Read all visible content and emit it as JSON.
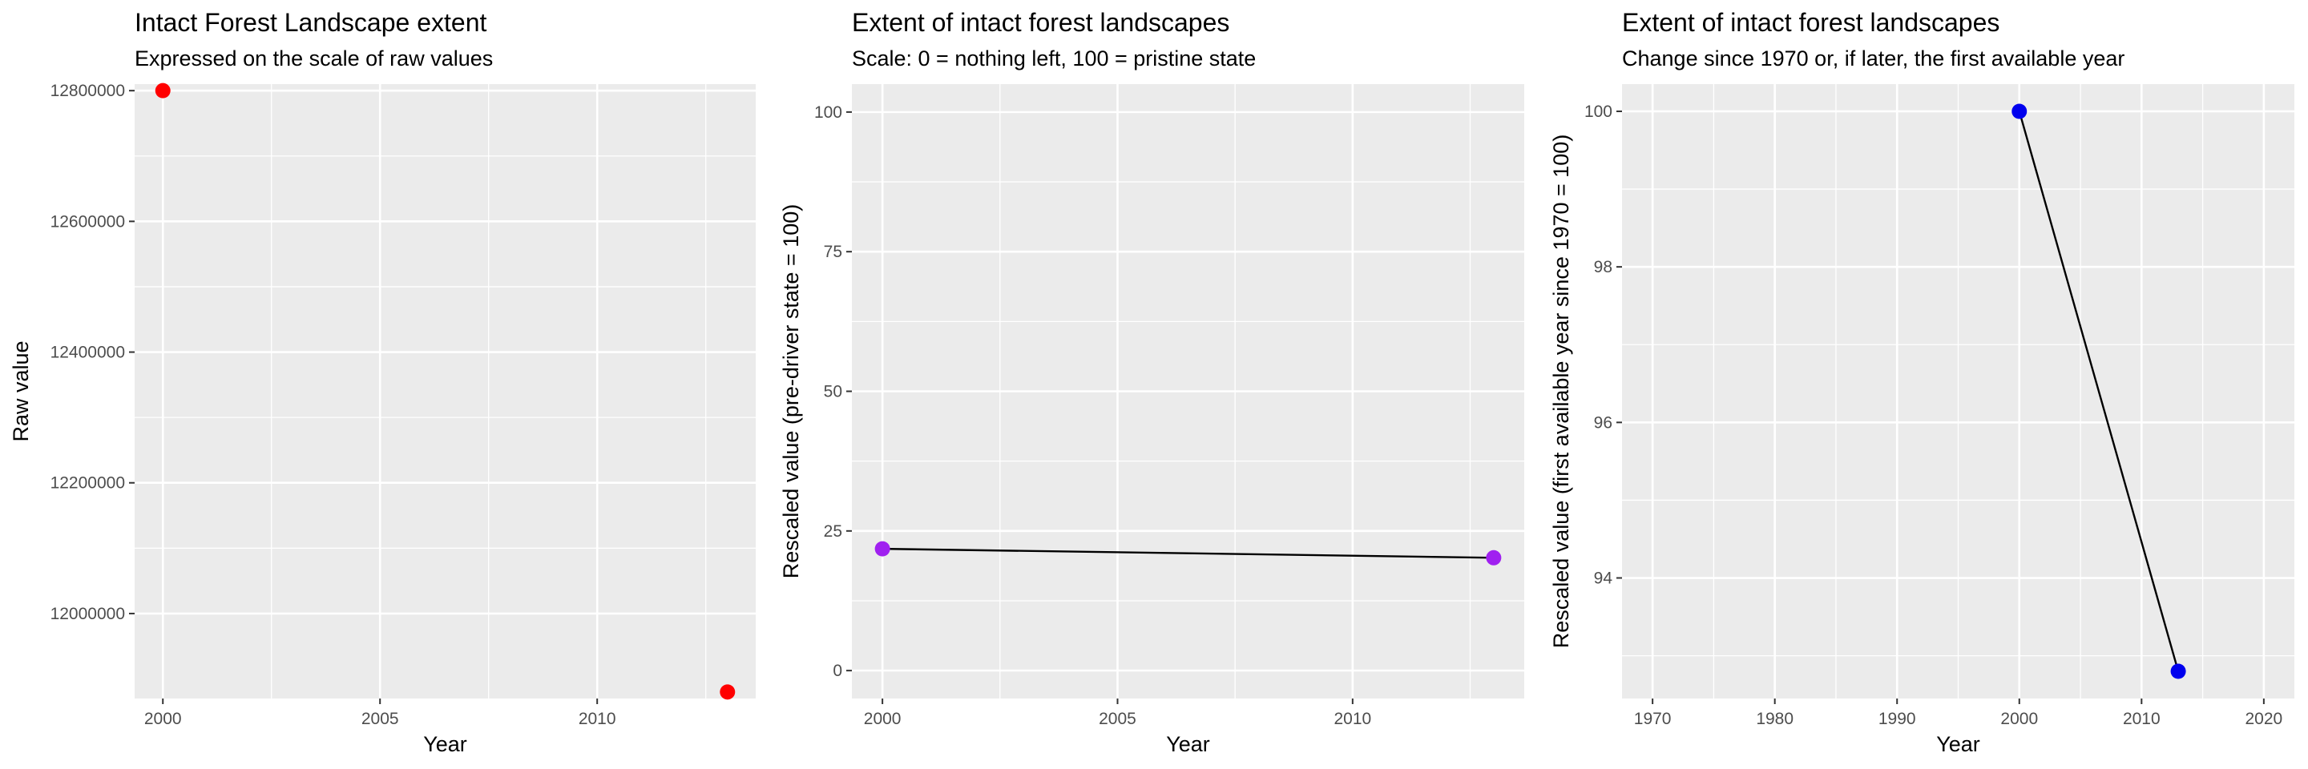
{
  "chart_data": [
    {
      "type": "scatter",
      "title": "Intact Forest Landscape extent",
      "subtitle": "Expressed on the scale of raw values",
      "xlabel": "Year",
      "ylabel": "Raw value",
      "xlim": [
        1999.35,
        2013.65
      ],
      "ylim": [
        11870000,
        12810000
      ],
      "xticks": [
        2000,
        2005,
        2010
      ],
      "xminor": [
        2002.5,
        2007.5,
        2012.5
      ],
      "yticks": [
        12000000,
        12200000,
        12400000,
        12600000,
        12800000
      ],
      "yminor": [
        12100000,
        12300000,
        12500000,
        12700000
      ],
      "connect": false,
      "point_color": "#ff0000",
      "points": [
        {
          "x": 2000,
          "y": 12800000
        },
        {
          "x": 2013,
          "y": 11880000
        }
      ],
      "grid": true,
      "background": "#ebebeb"
    },
    {
      "type": "line",
      "title": "Extent of intact forest landscapes",
      "subtitle": "Scale: 0 = nothing left, 100 = pristine state",
      "xlabel": "Year",
      "ylabel": "Rescaled value (pre-driver state = 100)",
      "xlim": [
        1999.35,
        2013.65
      ],
      "ylim": [
        -5,
        105
      ],
      "xticks": [
        2000,
        2005,
        2010
      ],
      "xminor": [
        2002.5,
        2007.5,
        2012.5
      ],
      "yticks": [
        0,
        25,
        50,
        75,
        100
      ],
      "yminor": [
        12.5,
        37.5,
        62.5,
        87.5
      ],
      "connect": true,
      "point_color": "#a020f0",
      "points": [
        {
          "x": 2000,
          "y": 21.8
        },
        {
          "x": 2013,
          "y": 20.2
        }
      ],
      "grid": true,
      "background": "#ebebeb"
    },
    {
      "type": "line",
      "title": "Extent of intact forest landscapes",
      "subtitle": "Change since 1970 or, if later, the first available year",
      "xlabel": "Year",
      "ylabel": "Rescaled value (first available year since 1970 = 100)",
      "xlim": [
        1967.5,
        2022.5
      ],
      "ylim": [
        92.45,
        100.35
      ],
      "xticks": [
        1970,
        1980,
        1990,
        2000,
        2010,
        2020
      ],
      "xminor": [
        1975,
        1985,
        1995,
        2005,
        2015
      ],
      "yticks": [
        94,
        96,
        98,
        100
      ],
      "yminor": [
        93,
        95,
        97,
        99
      ],
      "connect": true,
      "point_color": "#0000ee",
      "points": [
        {
          "x": 2000,
          "y": 100
        },
        {
          "x": 2013,
          "y": 92.8
        }
      ],
      "grid": true,
      "background": "#ebebeb"
    }
  ]
}
